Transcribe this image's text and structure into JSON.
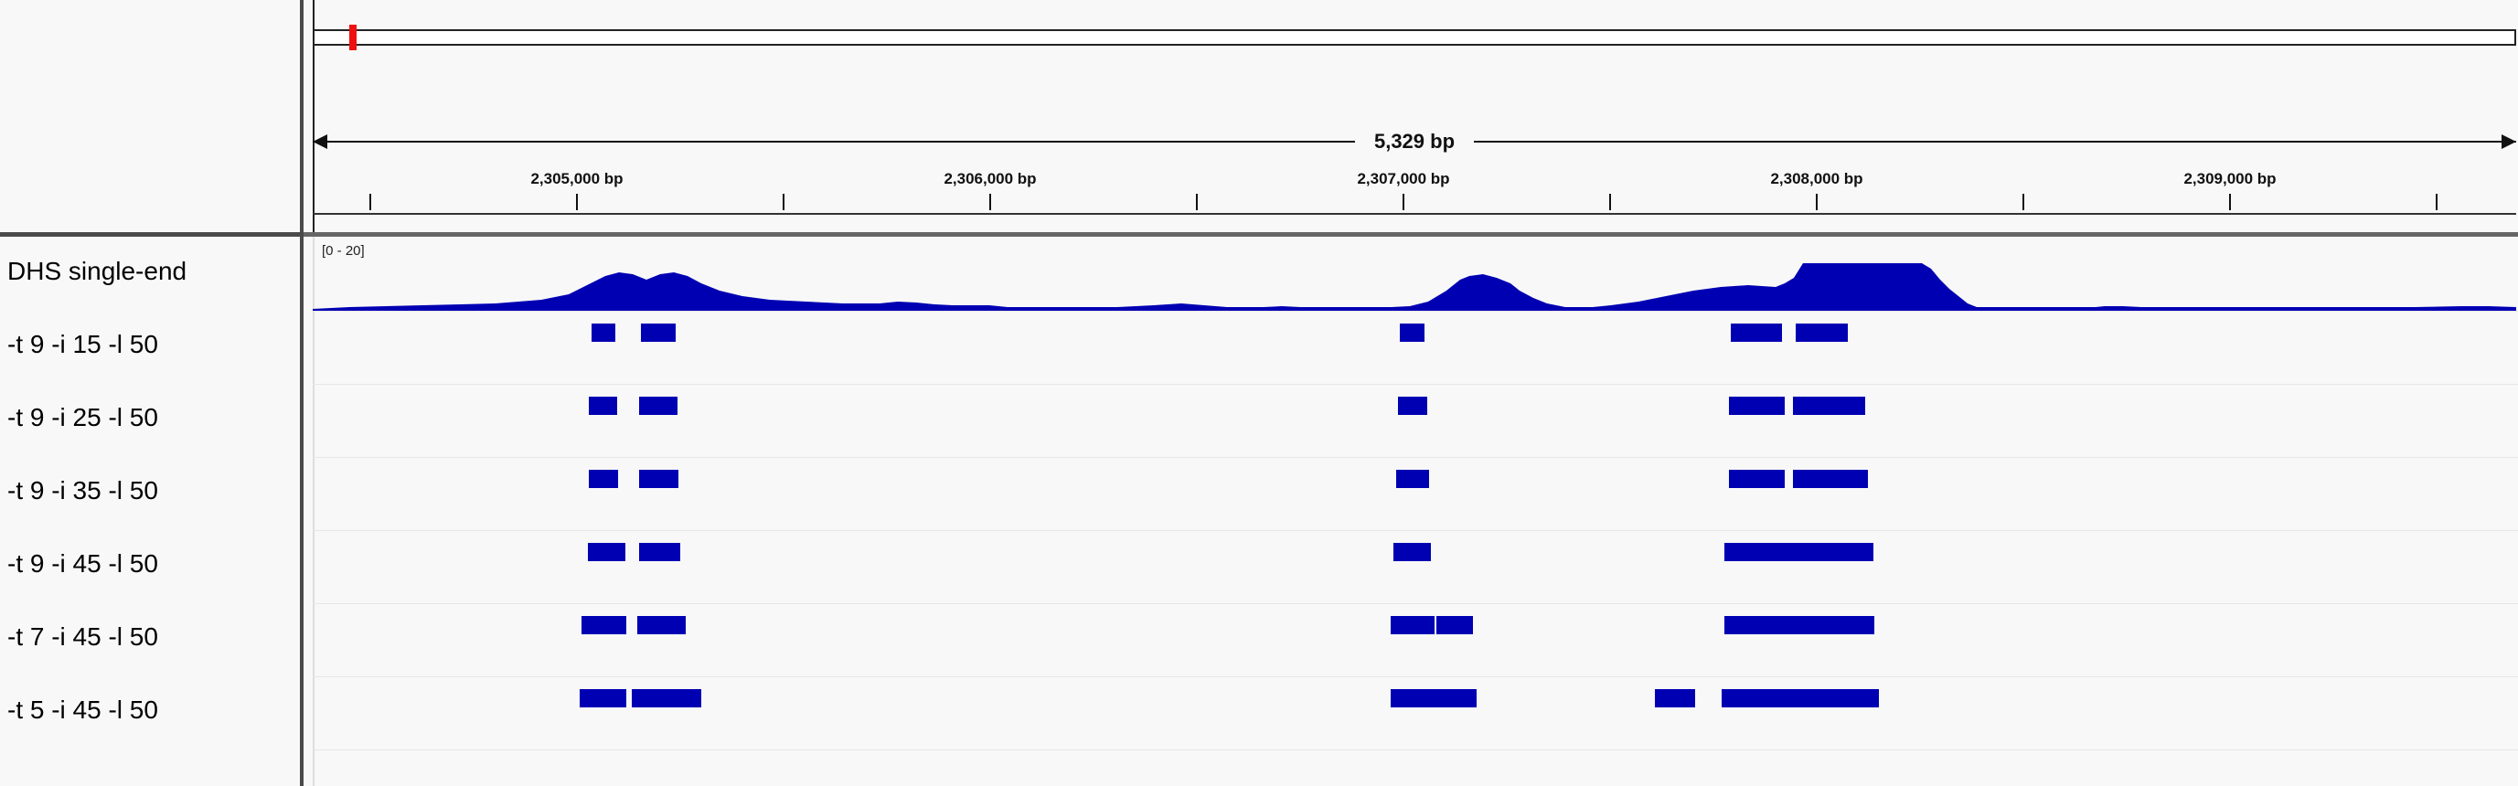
{
  "ruler": {
    "span_label": "5,329 bp",
    "ticks": [
      "2,305,000 bp",
      "2,306,000 bp",
      "2,307,000 bp",
      "2,308,000 bp",
      "2,309,000 bp"
    ]
  },
  "tracks": {
    "coverage": {
      "name": "DHS single-end",
      "data_range": "[0 - 20]"
    },
    "rows": [
      {
        "name": "-t 9 -i 15 -l 50"
      },
      {
        "name": "-t 9 -i 25 -l 50"
      },
      {
        "name": "-t 9 -i 35 -l 50"
      },
      {
        "name": "-t 9 -i 45 -l 50"
      },
      {
        "name": "-t 7 -i 45 -l 50"
      },
      {
        "name": "-t 5 -i 45 -l 50"
      }
    ]
  },
  "colors": {
    "feature": "#0000b3",
    "region_marker": "#ee1111"
  }
}
